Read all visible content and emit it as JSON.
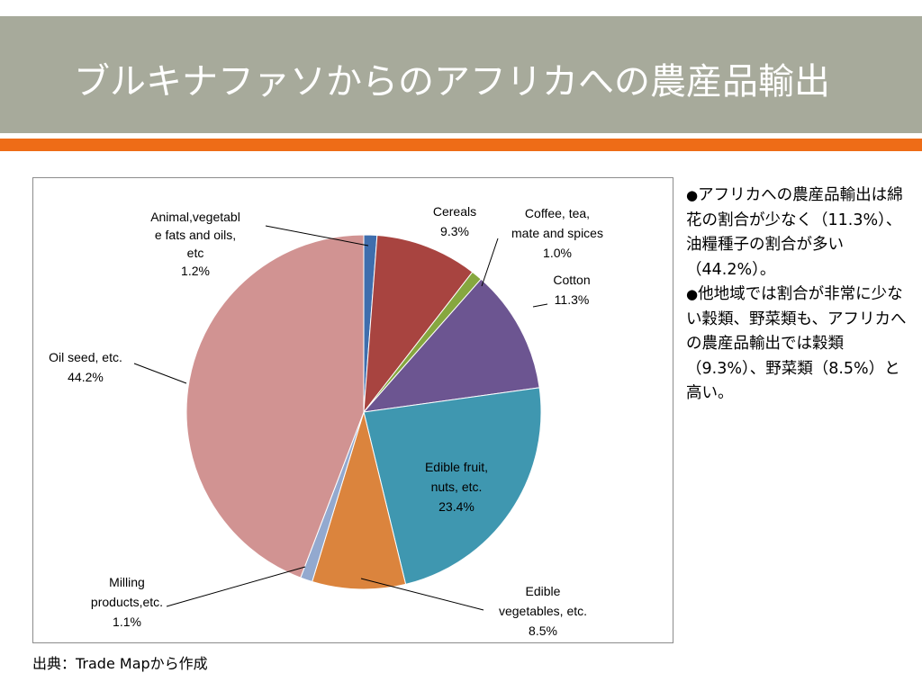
{
  "slide": {
    "title": "ブルキナファソからのアフリカへの農産品輸出",
    "source": "出典：Trade Mapから作成"
  },
  "bullets": [
    {
      "mark": "●",
      "text": "アフリカへの農産品輸出は綿花の割合が少なく（11.3%）、油糧種子の割合が多い（44.2%）。"
    },
    {
      "mark": "●",
      "text": "他地域では割合が非常に少ない穀類、野菜類も、アフリカへの農産品輸出では穀類（9.3%）、野菜類（8.5%）と高い。"
    }
  ],
  "colors": {
    "title_band": "#a7aa9b",
    "accent_bar": "#ee6c17"
  },
  "chart_data": {
    "type": "pie",
    "start_angle_deg": 90,
    "direction": "clockwise",
    "series": [
      {
        "name": "Animal,vegetable fats and oils, etc",
        "value": 1.2,
        "label_lines": [
          "Animal,vegetabl",
          "e fats and oils,",
          "etc",
          "1.2%"
        ],
        "color": "#3f6ead"
      },
      {
        "name": "Cereals",
        "value": 9.3,
        "label_lines": [
          "Cereals",
          "9.3%"
        ],
        "color": "#a84440"
      },
      {
        "name": "Coffee, tea, mate and spices",
        "value": 1.0,
        "label_lines": [
          "Coffee, tea,",
          "mate and spices",
          "1.0%"
        ],
        "color": "#86a73f"
      },
      {
        "name": "Cotton",
        "value": 11.3,
        "label_lines": [
          "Cotton",
          "11.3%"
        ],
        "color": "#6c5591"
      },
      {
        "name": "Edible fruit, nuts, etc.",
        "value": 23.4,
        "label_lines": [
          "Edible fruit,",
          "nuts, etc.",
          "23.4%"
        ],
        "color": "#3f97b0"
      },
      {
        "name": "Edible vegetables, etc.",
        "value": 8.5,
        "label_lines": [
          "Edible",
          "vegetables, etc.",
          "8.5%"
        ],
        "color": "#db843d"
      },
      {
        "name": "Milling products,etc.",
        "value": 1.1,
        "label_lines": [
          "Milling",
          "products,etc.",
          "1.1%"
        ],
        "color": "#93a9cf"
      },
      {
        "name": "Oil seed, etc.",
        "value": 44.2,
        "label_lines": [
          "Oil seed, etc.",
          "44.2%"
        ],
        "color": "#d19392"
      }
    ]
  }
}
